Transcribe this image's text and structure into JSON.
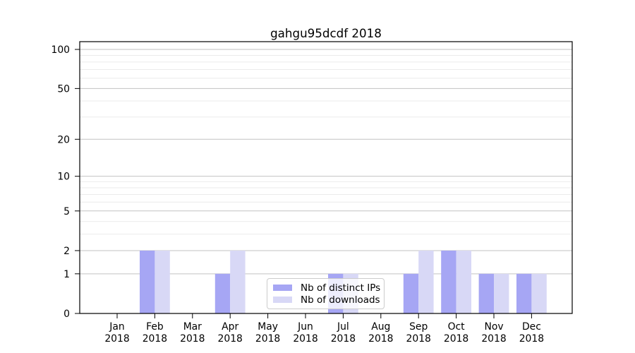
{
  "chart_data": {
    "type": "bar",
    "title": "gahgu95dcdf 2018",
    "xlabel": "",
    "ylabel": "",
    "yscale": "log1p",
    "ylim": [
      0,
      115
    ],
    "grid": true,
    "legend_position": "inside-bottom-center",
    "categories": [
      "Jan",
      "Feb",
      "Mar",
      "Apr",
      "May",
      "Jun",
      "Jul",
      "Aug",
      "Sep",
      "Oct",
      "Nov",
      "Dec"
    ],
    "x_year_label": "2018",
    "y_ticks": [
      0,
      1,
      2,
      5,
      10,
      20,
      50,
      100
    ],
    "y_tick_labels": [
      "0",
      "1",
      "2",
      "5",
      "10",
      "20",
      "50",
      "100"
    ],
    "y_minor_gridlines": [
      3,
      4,
      6,
      7,
      8,
      9,
      30,
      40,
      60,
      70,
      80,
      90
    ],
    "series": [
      {
        "name": "Nb of distinct IPs",
        "color": "#a6a6f4",
        "values": [
          0,
          2,
          0,
          1,
          0,
          0,
          1,
          0,
          1,
          2,
          1,
          1
        ]
      },
      {
        "name": "Nb of downloads",
        "color": "#d8d8f6",
        "values": [
          0,
          2,
          0,
          2,
          0,
          0,
          1,
          0,
          2,
          2,
          1,
          1
        ]
      }
    ]
  },
  "colors": {
    "bar_distinct_ips": "#a6a6f4",
    "bar_downloads": "#d8d8f6",
    "major_grid": "#c2c2c2",
    "minor_grid": "#ebebeb",
    "axis": "#000000",
    "text": "#000000",
    "legend_border": "#cccccc"
  }
}
